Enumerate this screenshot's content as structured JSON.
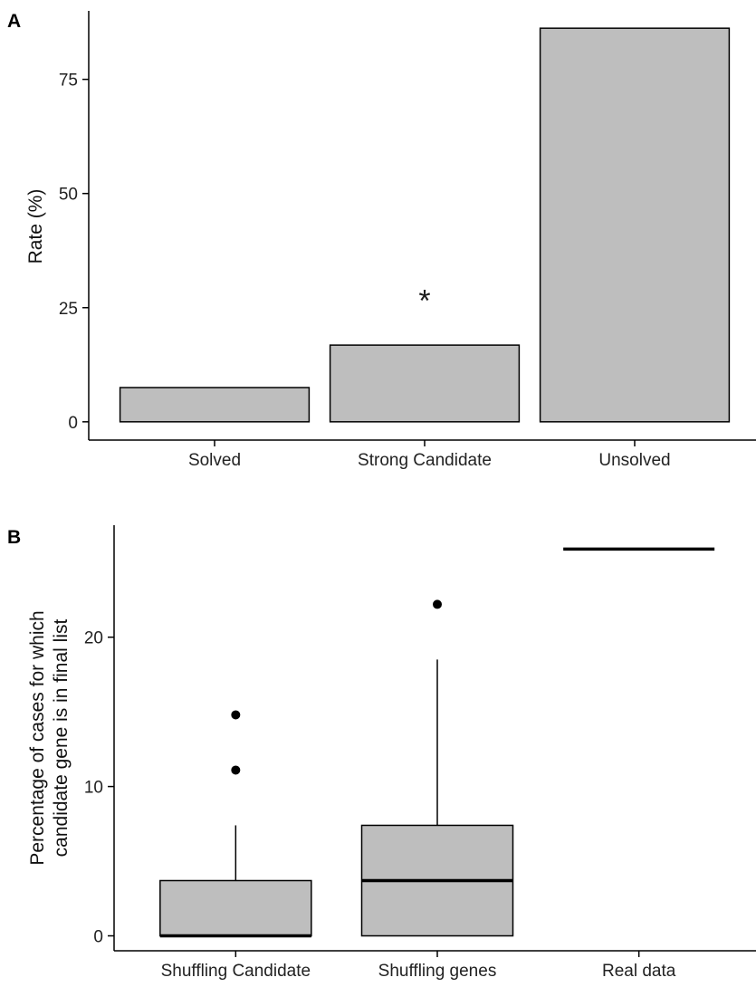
{
  "chart_data": [
    {
      "panel": "A",
      "type": "bar",
      "title": "",
      "xlabel": "",
      "ylabel": "Rate (%)",
      "categories": [
        "Solved",
        "Strong Candidate",
        "Unsolved"
      ],
      "values": [
        7.5,
        16.8,
        86.2
      ],
      "ylim": [
        -4,
        90
      ],
      "yticks": [
        0,
        25,
        50,
        75
      ],
      "annotations": [
        {
          "category": "Strong Candidate",
          "text": "*",
          "y": 27
        }
      ],
      "bar_color": "#bebebe",
      "grid": false,
      "legend": "none"
    },
    {
      "panel": "B",
      "type": "box",
      "title": "",
      "xlabel": "",
      "ylabel_lines": [
        "Percentage of cases for which",
        "candidate gene is in final list"
      ],
      "categories": [
        "Shuffling Candidate",
        "Shuffling genes",
        "Real data"
      ],
      "boxes": [
        {
          "q1": 0,
          "median": 0,
          "q3": 3.7,
          "whisker_low": 0,
          "whisker_high": 7.4,
          "outliers": [
            11.1,
            14.8
          ]
        },
        {
          "q1": 0,
          "median": 3.7,
          "q3": 7.4,
          "whisker_low": 0,
          "whisker_high": 18.5,
          "outliers": [
            22.2
          ]
        },
        {
          "q1": 25.9,
          "median": 25.9,
          "q3": 25.9,
          "whisker_low": 25.9,
          "whisker_high": 25.9,
          "outliers": []
        }
      ],
      "ylim": [
        -1,
        27.5
      ],
      "yticks": [
        0,
        10,
        20
      ],
      "box_color": "#bebebe",
      "grid": false,
      "legend": "none"
    }
  ]
}
